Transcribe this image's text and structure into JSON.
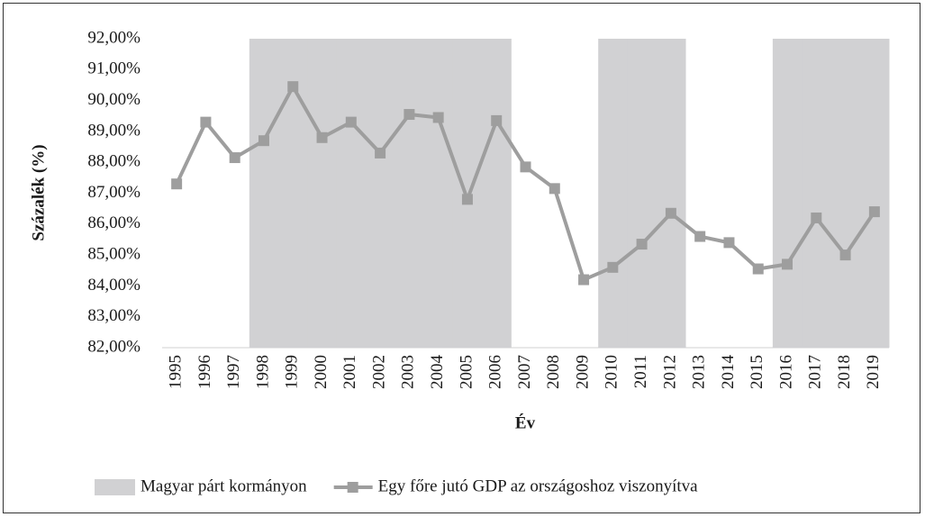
{
  "chart_data": {
    "type": "line",
    "x_label": "Év",
    "y_label": "Százalék (%)",
    "categories": [
      "1995",
      "1996",
      "1997",
      "1998",
      "1999",
      "2000",
      "2001",
      "2002",
      "2003",
      "2004",
      "2005",
      "2006",
      "2007",
      "2008",
      "2009",
      "2010",
      "2011",
      "2012",
      "2013",
      "2014",
      "2015",
      "2016",
      "2017",
      "2018",
      "2019"
    ],
    "series": [
      {
        "name": "Magyar párt kormányon",
        "type": "bar",
        "color": "#d1d1d3",
        "values": [
          null,
          null,
          null,
          92,
          92,
          92,
          92,
          92,
          92,
          92,
          92,
          92,
          null,
          null,
          null,
          92,
          92,
          92,
          null,
          null,
          null,
          92,
          92,
          92,
          92
        ]
      },
      {
        "name": "Egy főre jutó GDP az országoshoz viszonyítva",
        "type": "line",
        "color": "#9e9e9e",
        "values": [
          87.3,
          89.3,
          88.15,
          88.7,
          90.45,
          88.8,
          89.3,
          88.3,
          89.55,
          89.45,
          86.8,
          89.35,
          87.85,
          87.15,
          84.2,
          84.6,
          85.35,
          86.35,
          85.6,
          85.4,
          84.55,
          84.7,
          86.2,
          85.0,
          86.4
        ]
      }
    ],
    "ylim": [
      82,
      92
    ],
    "yticks": [
      {
        "value": 82,
        "label": "82,00%"
      },
      {
        "value": 83,
        "label": "83,00%"
      },
      {
        "value": 84,
        "label": "84,00%"
      },
      {
        "value": 85,
        "label": "85,00%"
      },
      {
        "value": 86,
        "label": "86,00%"
      },
      {
        "value": 87,
        "label": "87,00%"
      },
      {
        "value": 88,
        "label": "88,00%"
      },
      {
        "value": 89,
        "label": "89,00%"
      },
      {
        "value": 90,
        "label": "90,00%"
      },
      {
        "value": 91,
        "label": "91,00%"
      },
      {
        "value": 92,
        "label": "92,00%"
      }
    ],
    "legend": "bottom"
  }
}
